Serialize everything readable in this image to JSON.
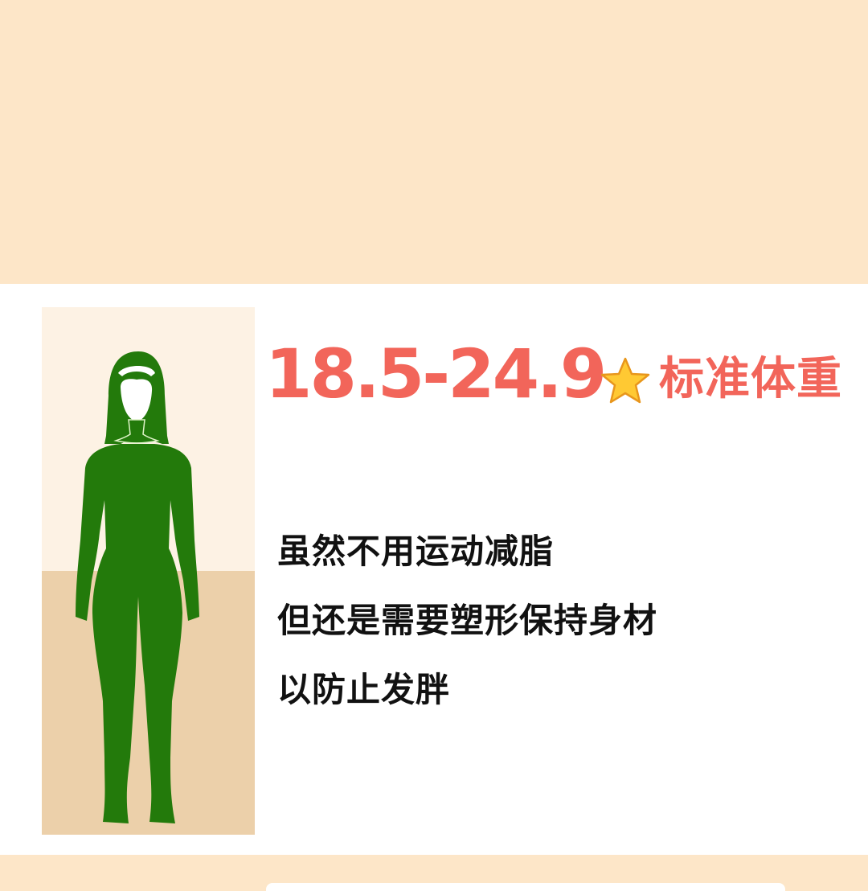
{
  "heading": {
    "bmi_range": "18.5-24.9",
    "category_icon": "star-icon",
    "category_label": "标准体重"
  },
  "description_lines": [
    "虽然不用运动减脂",
    "但还是需要塑形保持身材",
    "以防止发胖"
  ],
  "colors": {
    "background": "#fde6c8",
    "card": "#ffffff",
    "accent": "#f2655a",
    "figure": "#237a0b",
    "text": "#111111"
  }
}
